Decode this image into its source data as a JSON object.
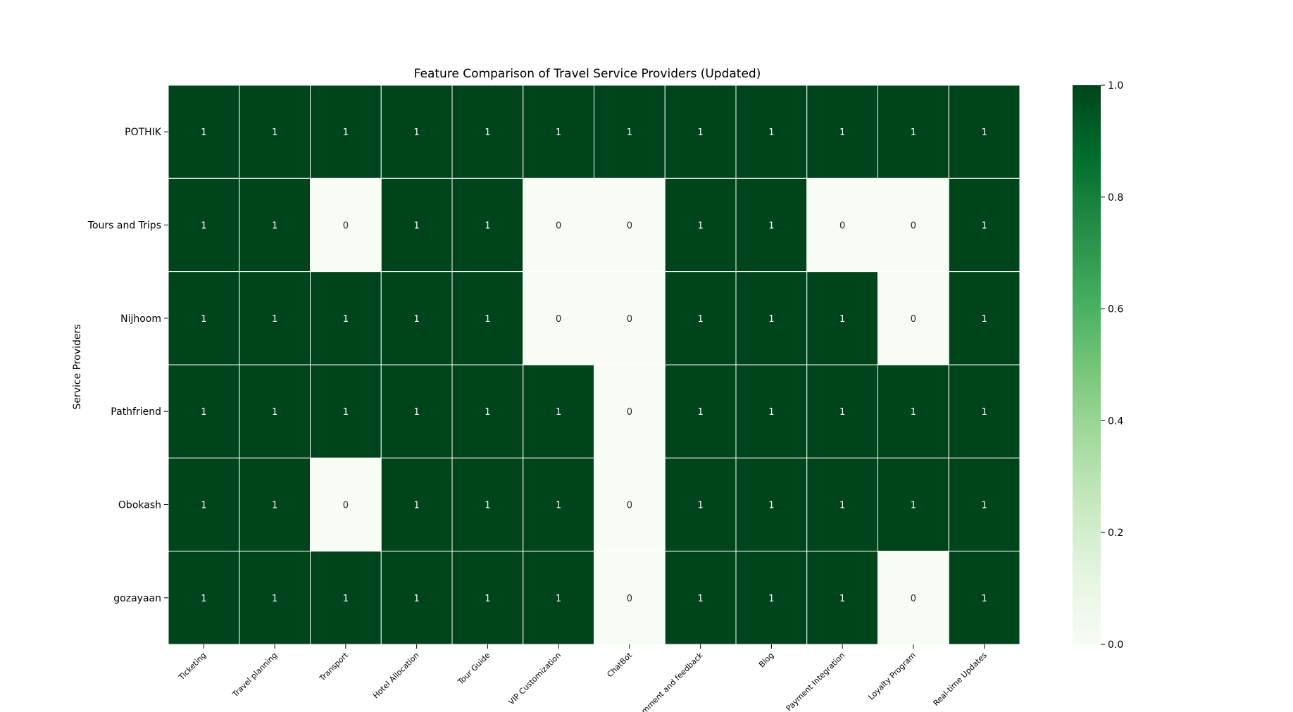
{
  "chart_data": {
    "type": "heatmap",
    "title": "Feature Comparison of Travel Service Providers (Updated)",
    "xlabel": "",
    "ylabel": "Service Providers",
    "columns": [
      "Ticketing",
      "Travel planning",
      "Transport",
      "Hotel Allocation",
      "Tour Guide",
      "VIP Customization",
      "ChatBot",
      "Comment and feedback",
      "Blog",
      "Payment Integration",
      "Loyalty Program",
      "Real-time Updates"
    ],
    "rows": [
      "POTHIK",
      "Tours and Trips",
      "Nijhoom",
      "Pathfriend",
      "Obokash",
      "gozayaan"
    ],
    "values": [
      [
        1,
        1,
        1,
        1,
        1,
        1,
        1,
        1,
        1,
        1,
        1,
        1
      ],
      [
        1,
        1,
        0,
        1,
        1,
        0,
        0,
        1,
        1,
        0,
        0,
        1
      ],
      [
        1,
        1,
        1,
        1,
        1,
        0,
        0,
        1,
        1,
        1,
        0,
        1
      ],
      [
        1,
        1,
        1,
        1,
        1,
        1,
        0,
        1,
        1,
        1,
        1,
        1
      ],
      [
        1,
        1,
        0,
        1,
        1,
        1,
        0,
        1,
        1,
        1,
        1,
        1
      ],
      [
        1,
        1,
        1,
        1,
        1,
        1,
        0,
        1,
        1,
        1,
        0,
        1
      ]
    ],
    "annotations": true,
    "colormap": "Greens",
    "colorbar": {
      "range": [
        0.0,
        1.0
      ],
      "ticks": [
        "0.0",
        "0.2",
        "0.4",
        "0.6",
        "0.8",
        "1.0"
      ]
    },
    "colors": {
      "high": "#00441b",
      "low": "#f7fcf5",
      "cell_border": "#ffffff",
      "annotation_on_high": "#ffffff",
      "annotation_on_low": "#262626"
    }
  }
}
